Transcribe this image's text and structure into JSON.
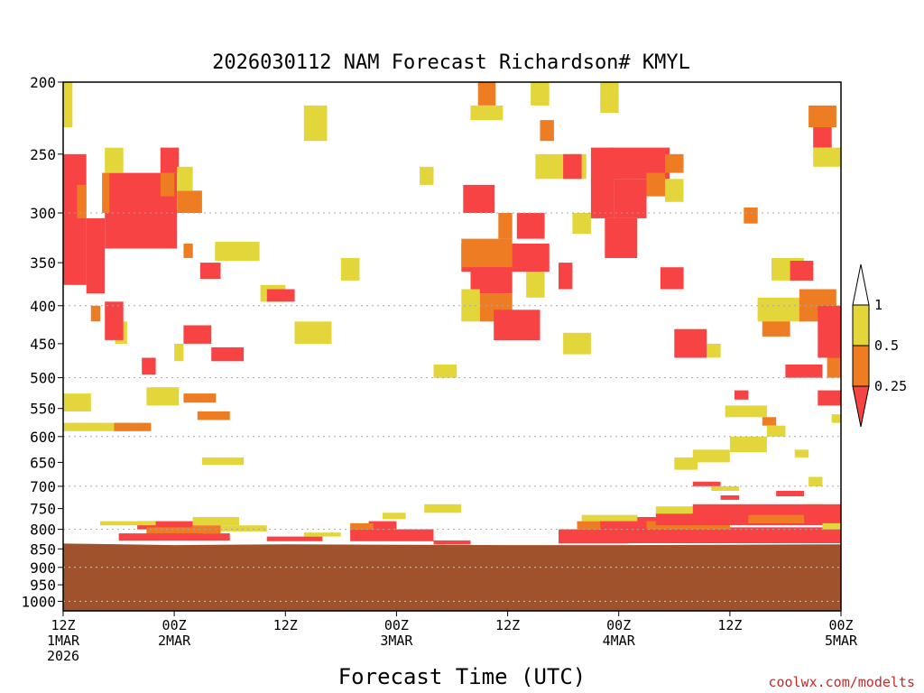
{
  "chart_data": {
    "type": "heatmap",
    "title": "2026030112 NAM Forecast Richardson# KMYL",
    "xlabel": "Forecast Time (UTC)",
    "ylabel": "",
    "credit": "coolwx.com/modelts",
    "x_range_hours": [
      0,
      84
    ],
    "y_range_hpa": [
      200,
      1030
    ],
    "y_scale": "log-pressure",
    "y_ticks": [
      200,
      250,
      300,
      350,
      400,
      450,
      500,
      550,
      600,
      650,
      700,
      750,
      800,
      850,
      900,
      950,
      1000
    ],
    "y_grid": [
      300,
      400,
      500,
      600,
      700,
      800,
      900,
      1000
    ],
    "x_ticks": [
      {
        "hour": 0,
        "lines": [
          "12Z",
          "1MAR",
          "2026"
        ]
      },
      {
        "hour": 12,
        "lines": [
          "00Z",
          "2MAR"
        ]
      },
      {
        "hour": 24,
        "lines": [
          "12Z"
        ]
      },
      {
        "hour": 36,
        "lines": [
          "00Z",
          "3MAR"
        ]
      },
      {
        "hour": 48,
        "lines": [
          "12Z"
        ]
      },
      {
        "hour": 60,
        "lines": [
          "00Z",
          "4MAR"
        ]
      },
      {
        "hour": 72,
        "lines": [
          "12Z"
        ]
      },
      {
        "hour": 84,
        "lines": [
          "00Z",
          "5MAR"
        ]
      }
    ],
    "legend": {
      "placement": "right",
      "bins": [
        {
          "label": "1",
          "color": "#ffffff"
        },
        {
          "label": "0.5",
          "color": "#e3d63a"
        },
        {
          "label": "0.25",
          "color": "#ee7c22"
        },
        {
          "label": "",
          "color": "#f74343"
        }
      ]
    },
    "classes": {
      "Y": "0.5 – 1",
      "O": "0.25 – 0.5",
      "R": "< 0.25"
    },
    "colors": {
      "Y": "#e3d63a",
      "O": "#ee7c22",
      "R": "#f74343",
      "ground": "#a0522d"
    },
    "ground_pressure_hpa": [
      {
        "hour": 0,
        "p": 836
      },
      {
        "hour": 3,
        "p": 837
      },
      {
        "hour": 12,
        "p": 840
      },
      {
        "hour": 24,
        "p": 838
      },
      {
        "hour": 36,
        "p": 839
      },
      {
        "hour": 48,
        "p": 840
      },
      {
        "hour": 60,
        "p": 840
      },
      {
        "hour": 72,
        "p": 839
      },
      {
        "hour": 84,
        "p": 838
      }
    ],
    "cells": [
      {
        "c": "R",
        "h0": 0.0,
        "h1": 2.5,
        "p0": 250,
        "p1": 375
      },
      {
        "c": "R",
        "h0": 2.5,
        "h1": 4.5,
        "p0": 305,
        "p1": 385
      },
      {
        "c": "O",
        "h0": 1.5,
        "h1": 2.5,
        "p0": 275,
        "p1": 305
      },
      {
        "c": "R",
        "h0": 4.5,
        "h1": 12.3,
        "p0": 265,
        "p1": 335
      },
      {
        "c": "O",
        "h0": 4.2,
        "h1": 5.0,
        "p0": 265,
        "p1": 300
      },
      {
        "c": "Y",
        "h0": 4.5,
        "h1": 6.5,
        "p0": 245,
        "p1": 265
      },
      {
        "c": "R",
        "h0": 10.5,
        "h1": 12.5,
        "p0": 245,
        "p1": 265
      },
      {
        "c": "O",
        "h0": 10.5,
        "h1": 12.0,
        "p0": 265,
        "p1": 285
      },
      {
        "c": "O",
        "h0": 12.3,
        "h1": 15.0,
        "p0": 280,
        "p1": 300
      },
      {
        "c": "Y",
        "h0": 12.3,
        "h1": 14.0,
        "p0": 260,
        "p1": 280
      },
      {
        "c": "O",
        "h0": 13.0,
        "h1": 14.0,
        "p0": 330,
        "p1": 345
      },
      {
        "c": "Y",
        "h0": 16.4,
        "h1": 21.2,
        "p0": 328,
        "p1": 348
      },
      {
        "c": "R",
        "h0": 14.8,
        "h1": 17.0,
        "p0": 350,
        "p1": 368
      },
      {
        "c": "Y",
        "h0": 5.6,
        "h1": 6.9,
        "p0": 420,
        "p1": 450
      },
      {
        "c": "O",
        "h0": 3.0,
        "h1": 4.0,
        "p0": 400,
        "p1": 420
      },
      {
        "c": "R",
        "h0": 4.5,
        "h1": 6.5,
        "p0": 395,
        "p1": 445
      },
      {
        "c": "Y",
        "h0": 0.0,
        "h1": 1.0,
        "p0": 200,
        "p1": 230
      },
      {
        "c": "R",
        "h0": 8.5,
        "h1": 10.0,
        "p0": 470,
        "p1": 495
      },
      {
        "c": "R",
        "h0": 13.0,
        "h1": 16.0,
        "p0": 425,
        "p1": 450
      },
      {
        "c": "Y",
        "h0": 12.0,
        "h1": 13.0,
        "p0": 450,
        "p1": 475
      },
      {
        "c": "R",
        "h0": 16.0,
        "h1": 19.5,
        "p0": 455,
        "p1": 475
      },
      {
        "c": "Y",
        "h0": 21.3,
        "h1": 24.0,
        "p0": 375,
        "p1": 395
      },
      {
        "c": "R",
        "h0": 22.0,
        "h1": 25.0,
        "p0": 380,
        "p1": 395
      },
      {
        "c": "Y",
        "h0": 25.0,
        "h1": 29.0,
        "p0": 420,
        "p1": 450
      },
      {
        "c": "Y",
        "h0": 30.0,
        "h1": 32.0,
        "p0": 345,
        "p1": 370
      },
      {
        "c": "Y",
        "h0": 26.0,
        "h1": 28.5,
        "p0": 215,
        "p1": 240
      },
      {
        "c": "Y",
        "h0": 0.0,
        "h1": 3.0,
        "p0": 525,
        "p1": 555
      },
      {
        "c": "Y",
        "h0": 0.0,
        "h1": 7.0,
        "p0": 575,
        "p1": 590
      },
      {
        "c": "O",
        "h0": 5.5,
        "h1": 9.5,
        "p0": 575,
        "p1": 590
      },
      {
        "c": "Y",
        "h0": 9.0,
        "h1": 12.5,
        "p0": 515,
        "p1": 545
      },
      {
        "c": "O",
        "h0": 13.0,
        "h1": 16.5,
        "p0": 525,
        "p1": 540
      },
      {
        "c": "O",
        "h0": 14.5,
        "h1": 18.0,
        "p0": 555,
        "p1": 570
      },
      {
        "c": "Y",
        "h0": 15.0,
        "h1": 19.5,
        "p0": 640,
        "p1": 655
      },
      {
        "c": "Y",
        "h0": 40.0,
        "h1": 42.5,
        "p0": 480,
        "p1": 500
      },
      {
        "c": "Y",
        "h0": 38.5,
        "h1": 40.0,
        "p0": 260,
        "p1": 275
      },
      {
        "c": "O",
        "h0": 44.8,
        "h1": 46.7,
        "p0": 200,
        "p1": 215
      },
      {
        "c": "Y",
        "h0": 44.0,
        "h1": 47.5,
        "p0": 215,
        "p1": 225
      },
      {
        "c": "Y",
        "h0": 50.5,
        "h1": 52.5,
        "p0": 200,
        "p1": 215
      },
      {
        "c": "R",
        "h0": 43.2,
        "h1": 46.6,
        "p0": 275,
        "p1": 300
      },
      {
        "c": "R",
        "h0": 43.0,
        "h1": 52.5,
        "p0": 330,
        "p1": 360
      },
      {
        "c": "O",
        "h0": 43.0,
        "h1": 48.5,
        "p0": 325,
        "p1": 355
      },
      {
        "c": "R",
        "h0": 44.0,
        "h1": 48.5,
        "p0": 355,
        "p1": 385
      },
      {
        "c": "R",
        "h0": 49.0,
        "h1": 52.0,
        "p0": 300,
        "p1": 325
      },
      {
        "c": "O",
        "h0": 47.0,
        "h1": 48.5,
        "p0": 300,
        "p1": 325
      },
      {
        "c": "Y",
        "h0": 43.0,
        "h1": 45.0,
        "p0": 380,
        "p1": 420
      },
      {
        "c": "O",
        "h0": 45.0,
        "h1": 48.5,
        "p0": 385,
        "p1": 420
      },
      {
        "c": "R",
        "h0": 46.5,
        "h1": 51.5,
        "p0": 405,
        "p1": 445
      },
      {
        "c": "Y",
        "h0": 50.0,
        "h1": 52.0,
        "p0": 360,
        "p1": 390
      },
      {
        "c": "R",
        "h0": 53.5,
        "h1": 55.0,
        "p0": 350,
        "p1": 380
      },
      {
        "c": "Y",
        "h0": 51.0,
        "h1": 56.5,
        "p0": 250,
        "p1": 270
      },
      {
        "c": "R",
        "h0": 54.0,
        "h1": 56.0,
        "p0": 250,
        "p1": 270
      },
      {
        "c": "O",
        "h0": 51.5,
        "h1": 53.0,
        "p0": 225,
        "p1": 240
      },
      {
        "c": "Y",
        "h0": 55.0,
        "h1": 57.0,
        "p0": 300,
        "p1": 320
      },
      {
        "c": "Y",
        "h0": 54.0,
        "h1": 57.0,
        "p0": 435,
        "p1": 465
      },
      {
        "c": "R",
        "h0": 57.0,
        "h1": 59.5,
        "p0": 245,
        "p1": 305
      },
      {
        "c": "Y",
        "h0": 58.0,
        "h1": 60.0,
        "p0": 200,
        "p1": 220
      },
      {
        "c": "R",
        "h0": 59.0,
        "h1": 65.5,
        "p0": 245,
        "p1": 270
      },
      {
        "c": "R",
        "h0": 59.5,
        "h1": 63.0,
        "p0": 270,
        "p1": 305
      },
      {
        "c": "R",
        "h0": 58.5,
        "h1": 62.0,
        "p0": 305,
        "p1": 345
      },
      {
        "c": "O",
        "h0": 63.0,
        "h1": 65.0,
        "p0": 265,
        "p1": 285
      },
      {
        "c": "Y",
        "h0": 65.0,
        "h1": 67.0,
        "p0": 270,
        "p1": 290
      },
      {
        "c": "O",
        "h0": 65.0,
        "h1": 67.0,
        "p0": 250,
        "p1": 265
      },
      {
        "c": "R",
        "h0": 66.0,
        "h1": 69.5,
        "p0": 430,
        "p1": 470
      },
      {
        "c": "Y",
        "h0": 69.5,
        "h1": 71.0,
        "p0": 450,
        "p1": 470
      },
      {
        "c": "R",
        "h0": 64.5,
        "h1": 67.0,
        "p0": 355,
        "p1": 380
      },
      {
        "c": "O",
        "h0": 73.5,
        "h1": 75.0,
        "p0": 295,
        "p1": 310
      },
      {
        "c": "O",
        "h0": 75.5,
        "h1": 78.5,
        "p0": 405,
        "p1": 440
      },
      {
        "c": "Y",
        "h0": 75.0,
        "h1": 80.0,
        "p0": 390,
        "p1": 420
      },
      {
        "c": "Y",
        "h0": 76.5,
        "h1": 80.0,
        "p0": 345,
        "p1": 370
      },
      {
        "c": "R",
        "h0": 78.5,
        "h1": 81.0,
        "p0": 348,
        "p1": 370
      },
      {
        "c": "O",
        "h0": 79.5,
        "h1": 83.5,
        "p0": 380,
        "p1": 420
      },
      {
        "c": "R",
        "h0": 81.5,
        "h1": 84.0,
        "p0": 400,
        "p1": 470
      },
      {
        "c": "R",
        "h0": 78.0,
        "h1": 82.0,
        "p0": 480,
        "p1": 500
      },
      {
        "c": "O",
        "h0": 82.5,
        "h1": 84.0,
        "p0": 470,
        "p1": 500
      },
      {
        "c": "R",
        "h0": 81.0,
        "h1": 83.0,
        "p0": 228,
        "p1": 245
      },
      {
        "c": "O",
        "h0": 80.5,
        "h1": 83.5,
        "p0": 215,
        "p1": 230
      },
      {
        "c": "Y",
        "h0": 81.0,
        "h1": 84.0,
        "p0": 245,
        "p1": 260
      },
      {
        "c": "R",
        "h0": 72.5,
        "h1": 74.0,
        "p0": 520,
        "p1": 535
      },
      {
        "c": "R",
        "h0": 81.5,
        "h1": 84.0,
        "p0": 520,
        "p1": 545
      },
      {
        "c": "Y",
        "h0": 71.5,
        "h1": 76.0,
        "p0": 545,
        "p1": 565
      },
      {
        "c": "O",
        "h0": 75.5,
        "h1": 77.0,
        "p0": 565,
        "p1": 580
      },
      {
        "c": "Y",
        "h0": 76.0,
        "h1": 78.0,
        "p0": 580,
        "p1": 600
      },
      {
        "c": "Y",
        "h0": 72.0,
        "h1": 76.0,
        "p0": 600,
        "p1": 630
      },
      {
        "c": "Y",
        "h0": 68.0,
        "h1": 72.0,
        "p0": 625,
        "p1": 650
      },
      {
        "c": "Y",
        "h0": 66.0,
        "h1": 68.5,
        "p0": 640,
        "p1": 665
      },
      {
        "c": "Y",
        "h0": 83.0,
        "h1": 84.0,
        "p0": 560,
        "p1": 575
      },
      {
        "c": "Y",
        "h0": 79.0,
        "h1": 80.5,
        "p0": 625,
        "p1": 640
      },
      {
        "c": "Y",
        "h0": 80.5,
        "h1": 82.0,
        "p0": 680,
        "p1": 700
      },
      {
        "c": "R",
        "h0": 68.0,
        "h1": 71.0,
        "p0": 690,
        "p1": 700
      },
      {
        "c": "Y",
        "h0": 70.0,
        "h1": 73.0,
        "p0": 700,
        "p1": 710
      },
      {
        "c": "R",
        "h0": 71.0,
        "h1": 73.0,
        "p0": 720,
        "p1": 730
      },
      {
        "c": "R",
        "h0": 77.0,
        "h1": 80.0,
        "p0": 710,
        "p1": 722
      },
      {
        "c": "Y",
        "h0": 80.0,
        "h1": 82.0,
        "p0": 740,
        "p1": 752
      },
      {
        "c": "R",
        "h0": 8.0,
        "h1": 14.0,
        "p0": 780,
        "p1": 800
      },
      {
        "c": "O",
        "h0": 9.0,
        "h1": 15.0,
        "p0": 795,
        "p1": 815
      },
      {
        "c": "R",
        "h0": 6.0,
        "h1": 18.0,
        "p0": 810,
        "p1": 828
      },
      {
        "c": "Y",
        "h0": 4.0,
        "h1": 10.0,
        "p0": 780,
        "p1": 790
      },
      {
        "c": "Y",
        "h0": 14.0,
        "h1": 19.0,
        "p0": 770,
        "p1": 790
      },
      {
        "c": "O",
        "h0": 14.0,
        "h1": 17.0,
        "p0": 790,
        "p1": 810
      },
      {
        "c": "Y",
        "h0": 17.0,
        "h1": 22.0,
        "p0": 790,
        "p1": 805
      },
      {
        "c": "R",
        "h0": 22.0,
        "h1": 28.0,
        "p0": 818,
        "p1": 830
      },
      {
        "c": "Y",
        "h0": 26.0,
        "h1": 30.0,
        "p0": 808,
        "p1": 818
      },
      {
        "c": "R",
        "h0": 31.0,
        "h1": 40.0,
        "p0": 800,
        "p1": 830
      },
      {
        "c": "R",
        "h0": 33.0,
        "h1": 36.0,
        "p0": 780,
        "p1": 800
      },
      {
        "c": "O",
        "h0": 31.0,
        "h1": 33.5,
        "p0": 785,
        "p1": 800
      },
      {
        "c": "Y",
        "h0": 34.5,
        "h1": 37.0,
        "p0": 760,
        "p1": 775
      },
      {
        "c": "Y",
        "h0": 39.0,
        "h1": 43.0,
        "p0": 740,
        "p1": 760
      },
      {
        "c": "R",
        "h0": 40.0,
        "h1": 44.0,
        "p0": 828,
        "p1": 838
      },
      {
        "c": "R",
        "h0": 53.5,
        "h1": 61.0,
        "p0": 800,
        "p1": 836
      },
      {
        "c": "O",
        "h0": 55.5,
        "h1": 60.0,
        "p0": 780,
        "p1": 800
      },
      {
        "c": "R",
        "h0": 58.0,
        "h1": 66.0,
        "p0": 770,
        "p1": 800
      },
      {
        "c": "Y",
        "h0": 56.0,
        "h1": 62.0,
        "p0": 765,
        "p1": 780
      },
      {
        "c": "R",
        "h0": 61.0,
        "h1": 84.0,
        "p0": 795,
        "p1": 835
      },
      {
        "c": "O",
        "h0": 63.0,
        "h1": 72.0,
        "p0": 780,
        "p1": 800
      },
      {
        "c": "R",
        "h0": 64.0,
        "h1": 84.0,
        "p0": 760,
        "p1": 790
      },
      {
        "c": "Y",
        "h0": 64.0,
        "h1": 68.0,
        "p0": 745,
        "p1": 762
      },
      {
        "c": "R",
        "h0": 68.0,
        "h1": 84.0,
        "p0": 740,
        "p1": 765
      },
      {
        "c": "O",
        "h0": 74.0,
        "h1": 80.0,
        "p0": 765,
        "p1": 785
      },
      {
        "c": "Y",
        "h0": 82.0,
        "h1": 84.0,
        "p0": 785,
        "p1": 800
      }
    ]
  }
}
